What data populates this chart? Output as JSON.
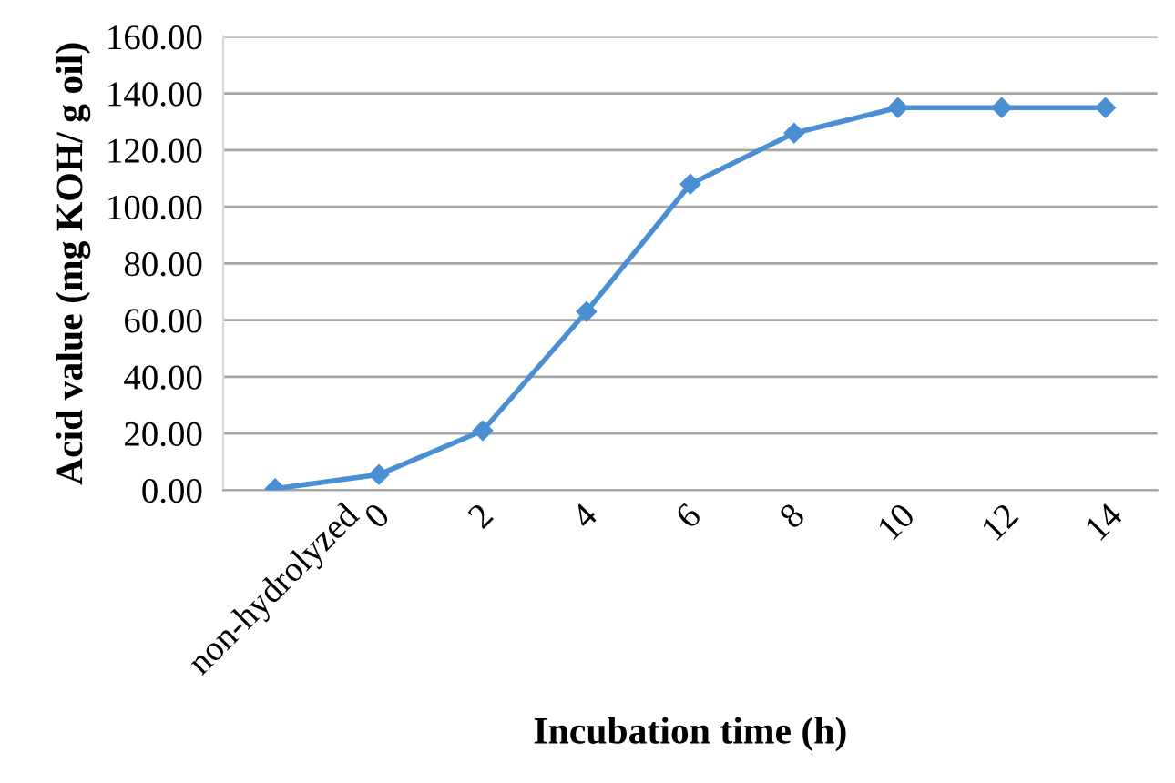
{
  "chart_data": {
    "type": "line",
    "xlabel": "Incubation time (h)",
    "ylabel": "Acid value (mg KOH/ g oil)",
    "categories": [
      "non-hydrolyzed",
      "0",
      "2",
      "4",
      "6",
      "8",
      "10",
      "12",
      "14"
    ],
    "series": [
      {
        "color": "#4a8fd4",
        "values": [
          0.5,
          5.5,
          21,
          63,
          108,
          126,
          135,
          135,
          135
        ]
      }
    ],
    "ylim": [
      0,
      160
    ],
    "yticks": [
      {
        "value": 0,
        "label": "0.00"
      },
      {
        "value": 20,
        "label": "20.00"
      },
      {
        "value": 40,
        "label": "40.00"
      },
      {
        "value": 60,
        "label": "60.00"
      },
      {
        "value": 80,
        "label": "80.00"
      },
      {
        "value": 100,
        "label": "100.00"
      },
      {
        "value": 120,
        "label": "120.00"
      },
      {
        "value": 140,
        "label": "140.00"
      },
      {
        "value": 160,
        "label": "160.00"
      }
    ],
    "grid": "y",
    "marker": "diamond",
    "line_style": "solid"
  }
}
